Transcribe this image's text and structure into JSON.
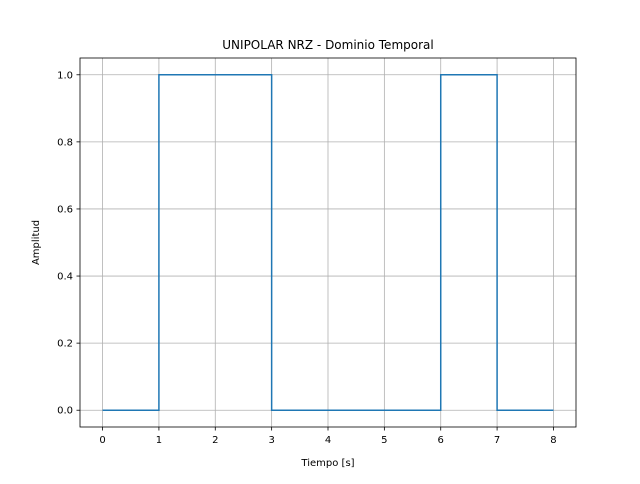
{
  "chart_data": {
    "type": "line",
    "title": "UNIPOLAR NRZ - Dominio Temporal",
    "xlabel": "Tiempo [s]",
    "ylabel": "Amplitud",
    "xlim": [
      -0.4,
      8.4
    ],
    "ylim": [
      -0.05,
      1.05
    ],
    "xticks": [
      0,
      1,
      2,
      3,
      4,
      5,
      6,
      7,
      8
    ],
    "yticks": [
      0.0,
      0.2,
      0.4,
      0.6,
      0.8,
      1.0
    ],
    "xtick_labels": [
      "0",
      "1",
      "2",
      "3",
      "4",
      "5",
      "6",
      "7",
      "8"
    ],
    "ytick_labels": [
      "0.0",
      "0.2",
      "0.4",
      "0.6",
      "0.8",
      "1.0"
    ],
    "grid": true,
    "series": [
      {
        "color": "#1f77b4",
        "drawstyle": "step",
        "x": [
          0,
          1,
          1,
          3,
          3,
          6,
          6,
          7,
          7,
          8
        ],
        "y": [
          0,
          0,
          1,
          1,
          0,
          0,
          1,
          1,
          0,
          0
        ]
      }
    ]
  }
}
